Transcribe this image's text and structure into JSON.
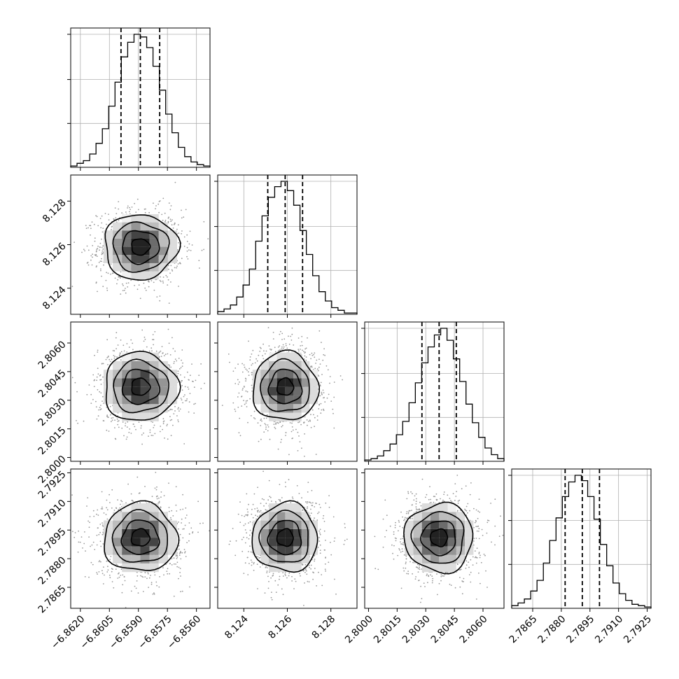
{
  "chart_data": {
    "type": "corner",
    "grid": true,
    "parameters": [
      {
        "mean": -6.8589,
        "sigma": 0.00095,
        "range": [
          -6.8625,
          -6.8553
        ],
        "ticks": [
          "−6.8620",
          "−6.8605",
          "−6.8590",
          "−6.8575",
          "−6.8560"
        ],
        "tick_values": [
          -6.862,
          -6.8605,
          -6.859,
          -6.8575,
          -6.856
        ],
        "quantiles": [
          -6.8599,
          -6.8589,
          -6.8579
        ]
      },
      {
        "mean": 8.1259,
        "sigma": 0.00075,
        "range": [
          8.1228,
          8.1292
        ],
        "ticks": [
          "8.124",
          "8.126",
          "8.128"
        ],
        "tick_values": [
          8.124,
          8.126,
          8.128
        ],
        "quantiles": [
          8.1251,
          8.1259,
          8.1267
        ]
      },
      {
        "mean": 2.8037,
        "sigma": 0.0009,
        "range": [
          2.7998,
          2.8071
        ],
        "ticks": [
          "2.8000",
          "2.8015",
          "2.8030",
          "2.8045",
          "2.8060"
        ],
        "tick_values": [
          2.8,
          2.8015,
          2.803,
          2.8045,
          2.806
        ],
        "quantiles": [
          2.8028,
          2.8037,
          2.8046
        ]
      },
      {
        "mean": 2.7891,
        "sigma": 0.0009,
        "range": [
          2.7854,
          2.7927
        ],
        "ticks": [
          "2.7865",
          "2.7880",
          "2.7895",
          "2.7910",
          "2.7925"
        ],
        "tick_values": [
          2.7865,
          2.788,
          2.7895,
          2.791,
          2.7925
        ],
        "quantiles": [
          2.7882,
          2.7891,
          2.79
        ]
      }
    ],
    "histograms": [
      [
        0.01,
        0.03,
        0.05,
        0.1,
        0.18,
        0.29,
        0.46,
        0.64,
        0.83,
        0.94,
        1.0,
        0.98,
        0.9,
        0.76,
        0.58,
        0.4,
        0.26,
        0.15,
        0.08,
        0.04,
        0.02,
        0.01
      ],
      [
        0.02,
        0.04,
        0.07,
        0.13,
        0.22,
        0.34,
        0.55,
        0.74,
        0.88,
        0.96,
        1.0,
        0.93,
        0.82,
        0.63,
        0.45,
        0.29,
        0.17,
        0.1,
        0.05,
        0.03,
        0.01,
        0.01
      ],
      [
        0.01,
        0.02,
        0.04,
        0.08,
        0.13,
        0.2,
        0.3,
        0.44,
        0.59,
        0.74,
        0.86,
        0.95,
        1.0,
        0.91,
        0.77,
        0.6,
        0.43,
        0.29,
        0.18,
        0.1,
        0.05,
        0.02
      ],
      [
        0.02,
        0.04,
        0.07,
        0.13,
        0.21,
        0.34,
        0.51,
        0.68,
        0.84,
        0.95,
        1.0,
        0.96,
        0.84,
        0.67,
        0.48,
        0.32,
        0.19,
        0.11,
        0.06,
        0.03,
        0.02,
        0.01
      ]
    ],
    "contour_levels_sigma": [
      0.5,
      1.0,
      1.5,
      2.0
    ]
  }
}
